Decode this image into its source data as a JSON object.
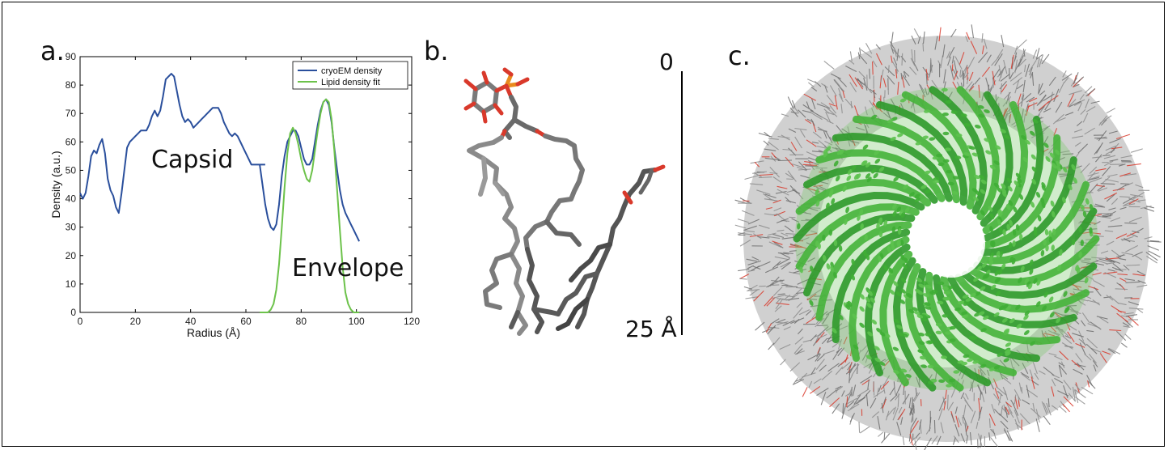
{
  "panels": {
    "a": {
      "letter": "a."
    },
    "b": {
      "letter": "b.",
      "scale_top": "0",
      "scale_bottom": "25 Å"
    },
    "c": {
      "letter": "c."
    }
  },
  "annotations": {
    "capsid": "Capsid",
    "envelope": "Envelope"
  },
  "colors": {
    "cryoem": "#2a4f9c",
    "lipid_fit": "#6cc24a",
    "lipid_carbon": "#6f6f6f",
    "oxygen": "#d9392b",
    "phosphorus": "#e98a1c",
    "protein": "#45b43a"
  },
  "chart_data": {
    "type": "line",
    "xlabel": "Radius (Å)",
    "ylabel": "Density (a.u.)",
    "xlim": [
      0,
      120
    ],
    "ylim": [
      0,
      90
    ],
    "xticks": [
      0,
      20,
      40,
      60,
      80,
      100,
      120
    ],
    "yticks": [
      0,
      10,
      20,
      30,
      40,
      50,
      60,
      70,
      80,
      90
    ],
    "legend": "top-right",
    "series": [
      {
        "name": "cryoEM density",
        "color": "#2a4f9c",
        "x": [
          0,
          1,
          2,
          3,
          4,
          5,
          6,
          7,
          8,
          9,
          10,
          11,
          12,
          13,
          14,
          15,
          16,
          17,
          18,
          19,
          20,
          21,
          22,
          23,
          24,
          25,
          26,
          27,
          28,
          29,
          30,
          31,
          32,
          33,
          34,
          35,
          36,
          37,
          38,
          39,
          40,
          41,
          42,
          43,
          44,
          45,
          46,
          47,
          48,
          49,
          50,
          51,
          52,
          53,
          54,
          55,
          56,
          57,
          58,
          59,
          60,
          61,
          62,
          63,
          64,
          65,
          66,
          67
        ],
        "y": [
          42,
          40,
          42,
          48,
          55,
          57,
          56,
          59,
          61,
          56,
          47,
          43,
          41,
          37,
          35,
          42,
          50,
          58,
          60,
          61,
          62,
          63,
          64,
          64,
          64,
          66,
          69,
          71,
          69,
          71,
          76,
          82,
          83,
          84,
          83,
          78,
          73,
          69,
          67,
          68,
          67,
          65,
          66,
          67,
          68,
          69,
          70,
          71,
          72,
          72,
          72,
          70,
          67,
          65,
          63,
          62,
          63,
          62,
          60,
          58,
          56,
          54,
          52,
          52,
          52,
          52,
          52,
          52
        ]
      },
      {
        "name": "",
        "color": "#2a4f9c",
        "x": [
          65,
          66,
          67,
          68,
          69,
          70,
          71,
          72,
          73,
          74,
          75,
          76,
          77,
          78,
          79,
          80,
          81,
          82,
          83,
          84,
          85,
          86,
          87,
          88,
          89,
          90,
          91,
          92,
          93,
          94,
          95,
          96,
          97,
          98,
          99,
          100,
          101
        ],
        "y": [
          52,
          45,
          38,
          33,
          30,
          29,
          31,
          38,
          48,
          55,
          60,
          62,
          64,
          64,
          62,
          58,
          54,
          52,
          52,
          54,
          60,
          66,
          71,
          74,
          75,
          73,
          67,
          58,
          50,
          43,
          38,
          35,
          33,
          31,
          29,
          27,
          25
        ]
      },
      {
        "name": "Lipid density fit",
        "color": "#6cc24a",
        "x": [
          65,
          66,
          67,
          68,
          69,
          70,
          71,
          72,
          73,
          74,
          75,
          76,
          77,
          78,
          79,
          80,
          81,
          82,
          83,
          84,
          85,
          86,
          87,
          88,
          89,
          90,
          91,
          92,
          93,
          94,
          95,
          96,
          97,
          98,
          99,
          100,
          101
        ],
        "y": [
          0,
          0,
          0,
          0,
          1,
          3,
          8,
          17,
          30,
          44,
          56,
          63,
          65,
          63,
          59,
          54,
          50,
          47,
          46,
          50,
          57,
          64,
          70,
          74,
          75,
          74,
          68,
          57,
          43,
          29,
          16,
          7,
          3,
          1,
          0,
          0,
          0
        ]
      }
    ]
  }
}
